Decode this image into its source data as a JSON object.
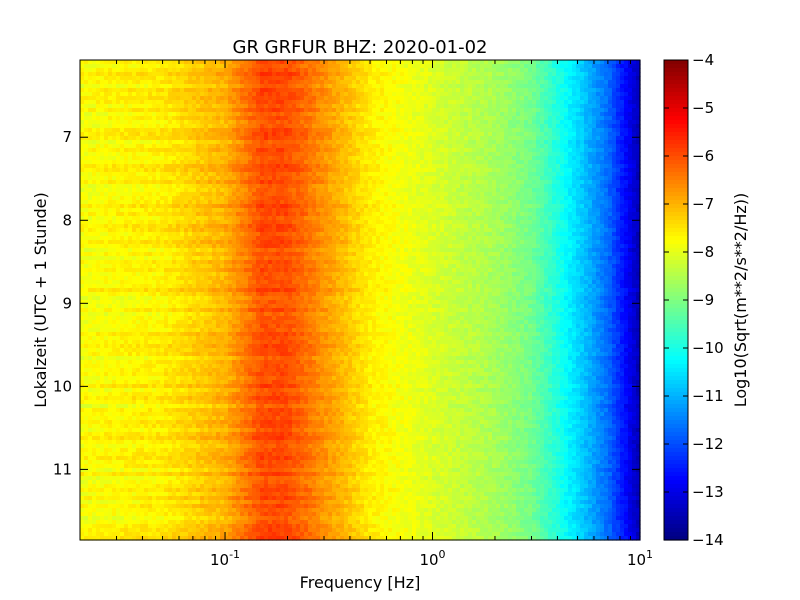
{
  "chart_data": {
    "type": "heatmap",
    "title": "GR GRFUR BHZ: 2020-01-02",
    "xlabel": "Frequency [Hz]",
    "ylabel": "Lokalzeit (UTC + 1 Stunde)",
    "x_scale": "log",
    "xlim": [
      0.02,
      10
    ],
    "ylim": [
      6.07,
      11.85
    ],
    "y_direction": "top-to-bottom",
    "x_ticks": [
      {
        "base": "10",
        "exp": "-1",
        "value": 0.1
      },
      {
        "base": "10",
        "exp": "0",
        "value": 1
      },
      {
        "base": "10",
        "exp": "1",
        "value": 10
      }
    ],
    "y_ticks": [
      {
        "label": "7",
        "value": 7
      },
      {
        "label": "8",
        "value": 8
      },
      {
        "label": "9",
        "value": 9
      },
      {
        "label": "10",
        "value": 10
      },
      {
        "label": "11",
        "value": 11
      }
    ],
    "colorbar": {
      "label": "Log10(Sqrt(m**2/s**2/Hz))",
      "colormap": "jet",
      "range": [
        -14,
        -4
      ],
      "ticks": [
        {
          "label": "−4",
          "value": -4
        },
        {
          "label": "−5",
          "value": -5
        },
        {
          "label": "−6",
          "value": -6
        },
        {
          "label": "−7",
          "value": -7
        },
        {
          "label": "−8",
          "value": -8
        },
        {
          "label": "−9",
          "value": -9
        },
        {
          "label": "−10",
          "value": -10
        },
        {
          "label": "−11",
          "value": -11
        },
        {
          "label": "−12",
          "value": -12
        },
        {
          "label": "−13",
          "value": -13
        },
        {
          "label": "−14",
          "value": -14
        }
      ]
    },
    "spectrum_profile": {
      "frequency_hz": [
        0.02,
        0.05,
        0.1,
        0.15,
        0.2,
        0.3,
        0.5,
        1,
        2,
        3,
        5,
        7,
        10
      ],
      "log10_amplitude": [
        -7.8,
        -7.6,
        -7.0,
        -6.0,
        -6.0,
        -6.7,
        -7.6,
        -8.1,
        -8.6,
        -9.1,
        -10.6,
        -11.7,
        -13.5
      ]
    }
  }
}
